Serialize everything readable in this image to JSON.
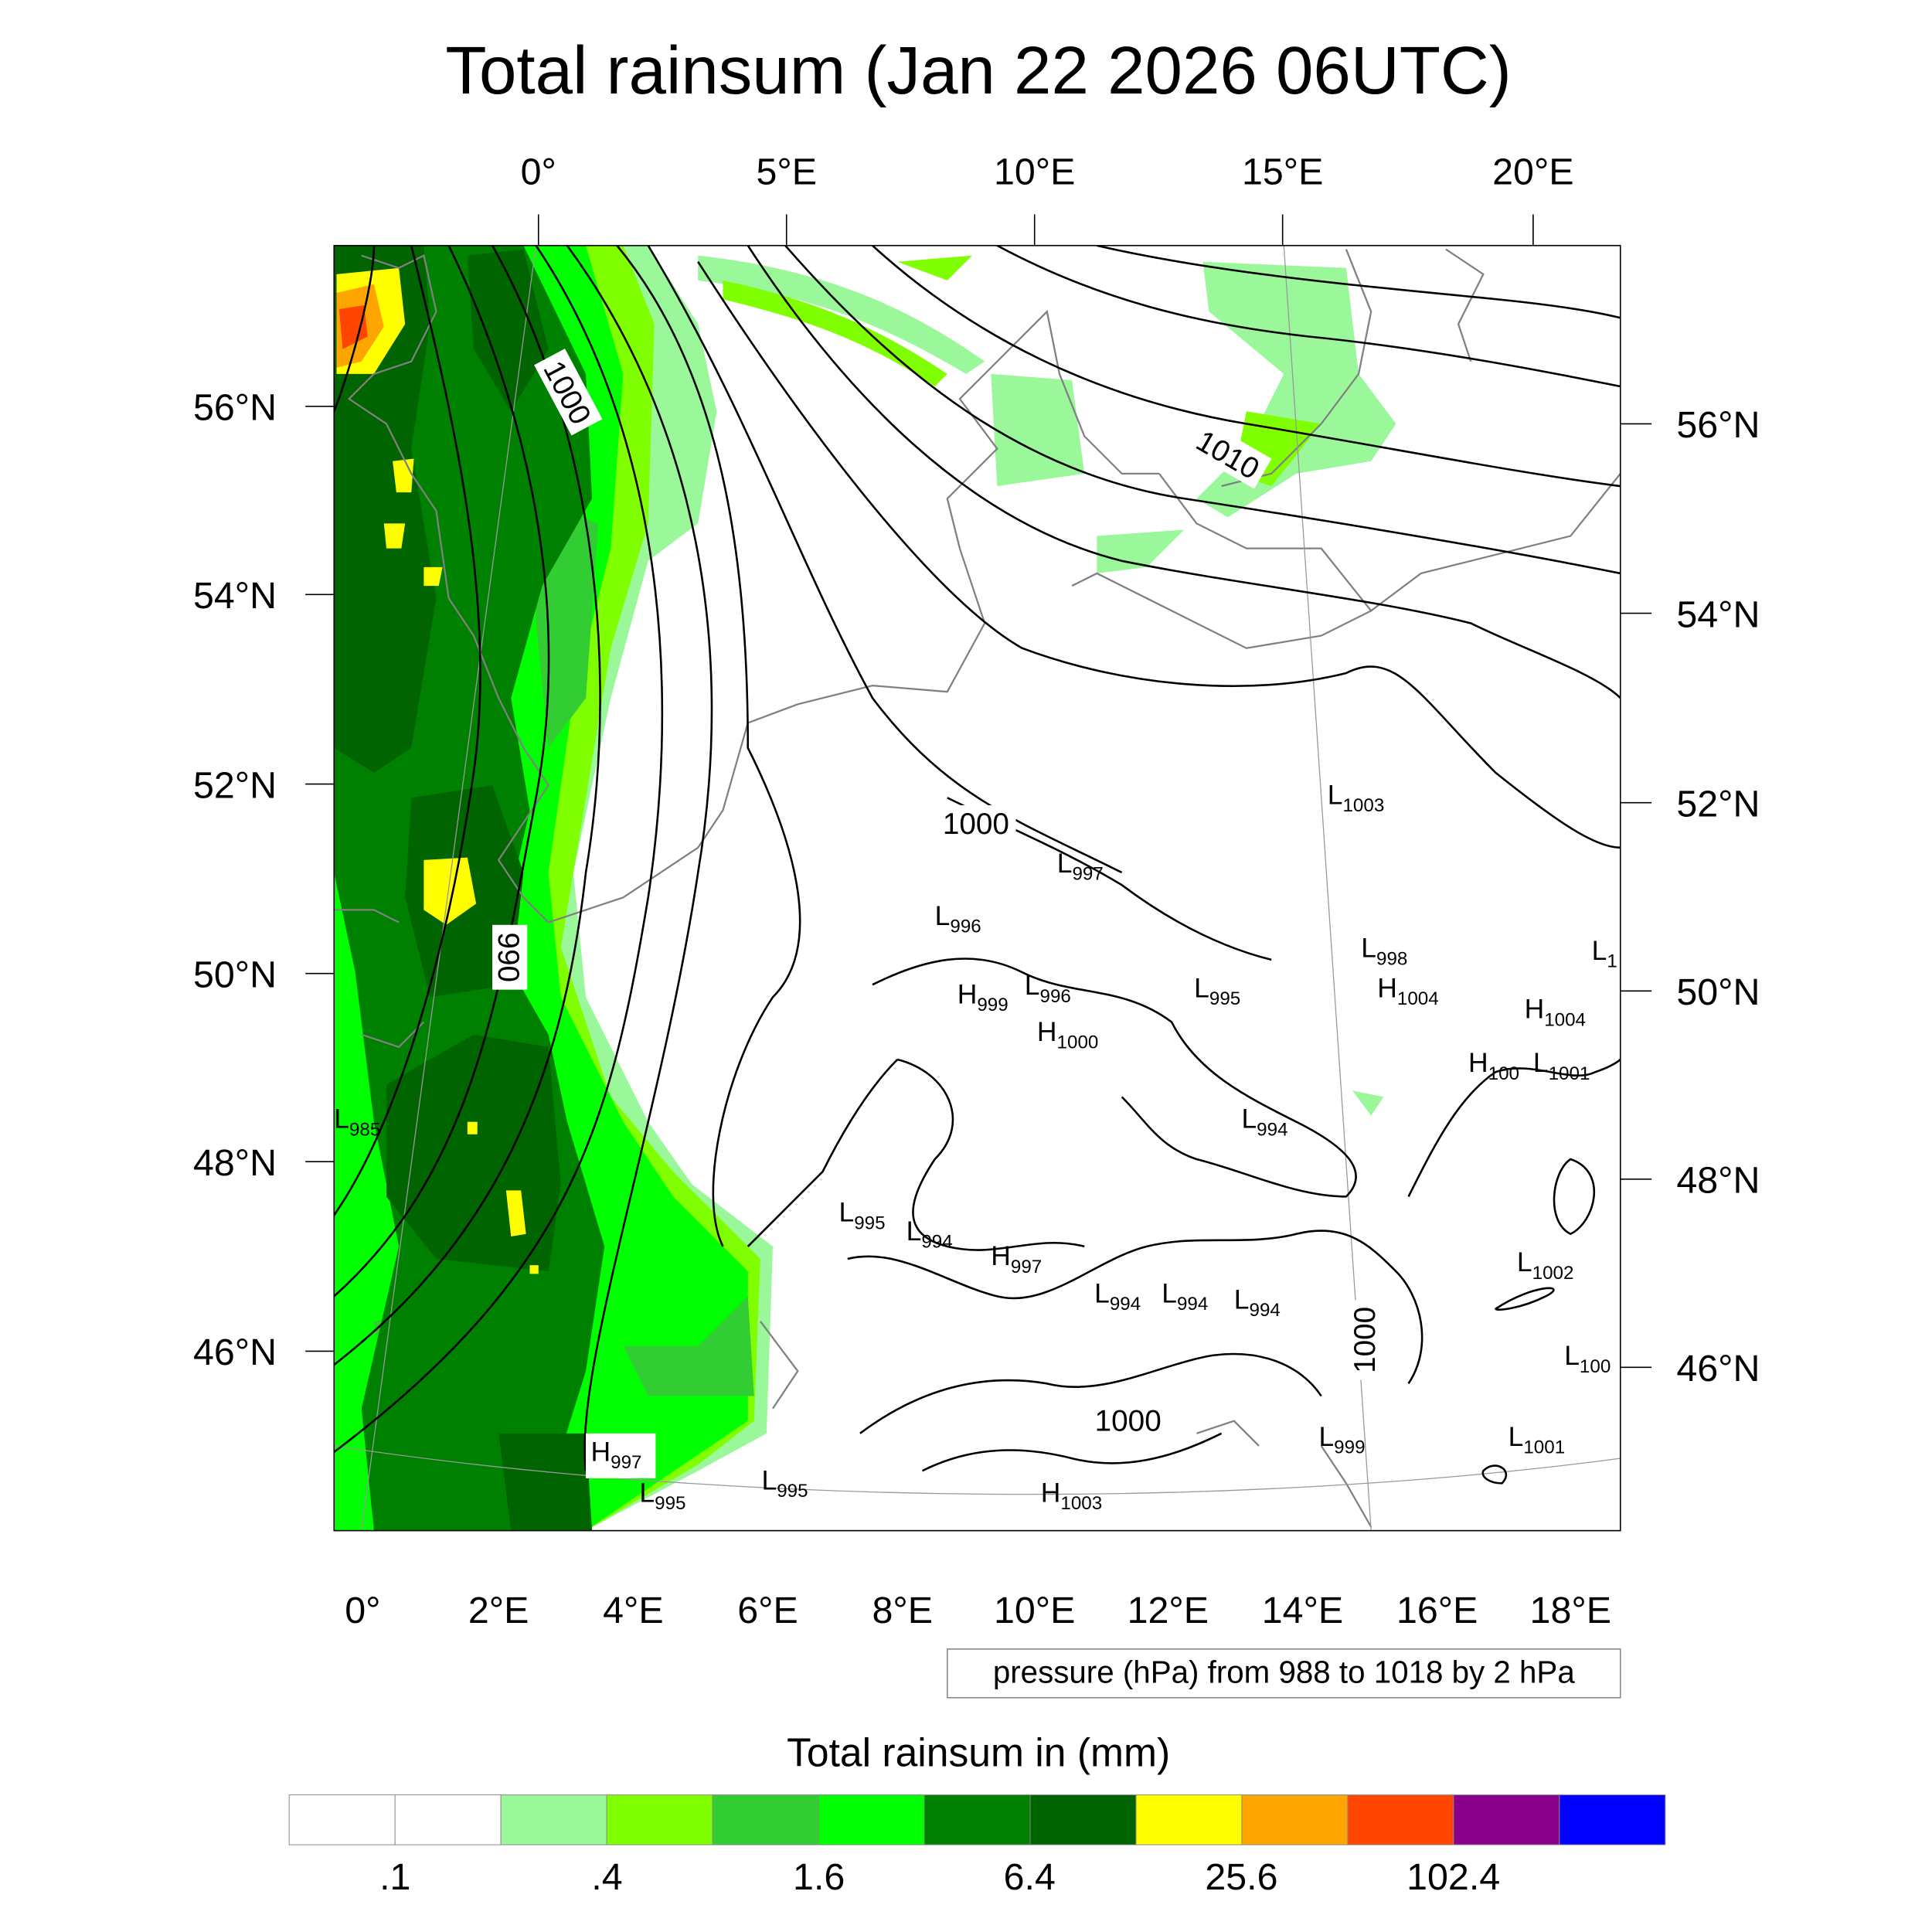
{
  "title": "Total rainsum (Jan 22 2026 06UTC)",
  "top_lon_labels": [
    "0°",
    "5°E",
    "10°E",
    "15°E",
    "20°E"
  ],
  "left_lat_labels": [
    "56°N",
    "54°N",
    "52°N",
    "50°N",
    "48°N",
    "46°N"
  ],
  "right_lat_labels": [
    "56°N",
    "54°N",
    "52°N",
    "50°N",
    "48°N",
    "46°N"
  ],
  "bottom_lon_labels": [
    "0°",
    "2°E",
    "4°E",
    "6°E",
    "8°E",
    "10°E",
    "12°E",
    "14°E",
    "16°E",
    "18°E"
  ],
  "contour_labels": [
    "1000",
    "990",
    "1010",
    "1000",
    "1000",
    "1000"
  ],
  "pressure_centers": [
    {
      "type": "L",
      "value": "985"
    },
    {
      "type": "L",
      "value": "1003"
    },
    {
      "type": "L",
      "value": "997"
    },
    {
      "type": "L",
      "value": "996"
    },
    {
      "type": "L",
      "value": "998"
    },
    {
      "type": "L",
      "value": "1"
    },
    {
      "type": "H",
      "value": "999"
    },
    {
      "type": "L",
      "value": "996"
    },
    {
      "type": "L",
      "value": "995"
    },
    {
      "type": "H",
      "value": "1004"
    },
    {
      "type": "H",
      "value": "1004"
    },
    {
      "type": "H",
      "value": "1000"
    },
    {
      "type": "H",
      "value": "100"
    },
    {
      "type": "L",
      "value": "1001"
    },
    {
      "type": "L",
      "value": "994"
    },
    {
      "type": "L",
      "value": "995"
    },
    {
      "type": "L",
      "value": "994"
    },
    {
      "type": "H",
      "value": "997"
    },
    {
      "type": "L",
      "value": "1002"
    },
    {
      "type": "L",
      "value": "994"
    },
    {
      "type": "L",
      "value": "994"
    },
    {
      "type": "L",
      "value": "994"
    },
    {
      "type": "L",
      "value": "100"
    },
    {
      "type": "H",
      "value": "997"
    },
    {
      "type": "L",
      "value": "995"
    },
    {
      "type": "L",
      "value": "995"
    },
    {
      "type": "L",
      "value": "999"
    },
    {
      "type": "L",
      "value": "1001"
    },
    {
      "type": "H",
      "value": "1003"
    }
  ],
  "contour_legend": "pressure (hPa) from 988 to 1018 by 2 hPa",
  "colorbar": {
    "title": "Total rainsum in (mm)",
    "colors": [
      "#ffffff",
      "#ffffff",
      "#9af89a",
      "#80ff00",
      "#32cd32",
      "#00ff00",
      "#008000",
      "#006400",
      "#ffff00",
      "#ffa500",
      "#ff4500",
      "#8b008b",
      "#0000ff"
    ],
    "labels": [
      ".1",
      ".4",
      "1.6",
      "6.4",
      "25.6",
      "102.4"
    ]
  }
}
